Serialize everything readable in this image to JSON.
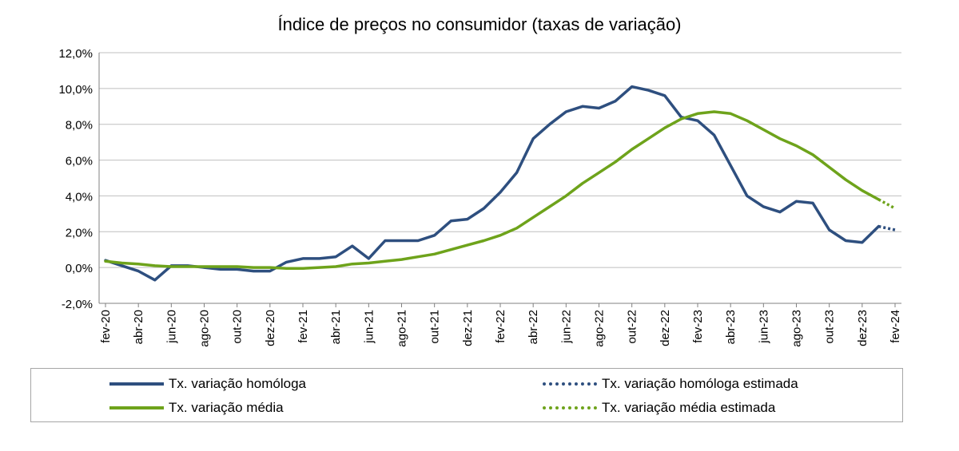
{
  "colors": {
    "homologa": "#2E4F7F",
    "media": "#6EA31B",
    "grid": "#BFBFBF",
    "axis": "#808080"
  },
  "chart_data": {
    "type": "line",
    "title": "Índice de preços no consumidor  (taxas  de variação)",
    "ylim": [
      -2,
      12
    ],
    "y_ticks": [
      -2,
      0,
      2,
      4,
      6,
      8,
      10,
      12
    ],
    "y_tick_labels": [
      "-2,0%",
      "0,0%",
      "2,0%",
      "4,0%",
      "6,0%",
      "8,0%",
      "10,0%",
      "12,0%"
    ],
    "x_tick_labels": [
      "fev-20",
      "abr-20",
      "jun-20",
      "ago-20",
      "out-20",
      "dez-20",
      "fev-21",
      "abr-21",
      "jun-21",
      "ago-21",
      "out-21",
      "dez-21",
      "fev-22",
      "abr-22",
      "jun-22",
      "ago-22",
      "out-22",
      "dez-22",
      "fev-23",
      "abr-23",
      "jun-23",
      "ago-23",
      "out-23",
      "dez-23",
      "fev-24"
    ],
    "x_months": [
      "fev-20",
      "mar-20",
      "abr-20",
      "mai-20",
      "jun-20",
      "jul-20",
      "ago-20",
      "set-20",
      "out-20",
      "nov-20",
      "dez-20",
      "jan-21",
      "fev-21",
      "mar-21",
      "abr-21",
      "mai-21",
      "jun-21",
      "jul-21",
      "ago-21",
      "set-21",
      "out-21",
      "nov-21",
      "dez-21",
      "jan-22",
      "fev-22",
      "mar-22",
      "abr-22",
      "mai-22",
      "jun-22",
      "jul-22",
      "ago-22",
      "set-22",
      "out-22",
      "nov-22",
      "dez-22",
      "jan-23",
      "fev-23",
      "mar-23",
      "abr-23",
      "mai-23",
      "jun-23",
      "jul-23",
      "ago-23",
      "set-23",
      "out-23",
      "nov-23",
      "dez-23",
      "jan-24",
      "fev-24"
    ],
    "grid": true,
    "legend_position": "bottom",
    "series": [
      {
        "name": "Tx. variação homóloga",
        "style": "solid",
        "color": "#2E4F7F",
        "values": [
          0.4,
          0.1,
          -0.2,
          -0.7,
          0.1,
          0.1,
          0.0,
          -0.1,
          -0.1,
          -0.2,
          -0.2,
          0.3,
          0.5,
          0.5,
          0.6,
          1.2,
          0.5,
          1.5,
          1.5,
          1.5,
          1.8,
          2.6,
          2.7,
          3.3,
          4.2,
          5.3,
          7.2,
          8.0,
          8.7,
          9.0,
          8.9,
          9.3,
          10.1,
          9.9,
          9.6,
          8.4,
          8.2,
          7.4,
          5.7,
          4.0,
          3.4,
          3.1,
          3.7,
          3.6,
          2.1,
          1.5,
          1.4,
          2.3,
          null
        ]
      },
      {
        "name": "Tx. variação homóloga estimada",
        "style": "dotted",
        "color": "#2E4F7F",
        "values": [
          null,
          null,
          null,
          null,
          null,
          null,
          null,
          null,
          null,
          null,
          null,
          null,
          null,
          null,
          null,
          null,
          null,
          null,
          null,
          null,
          null,
          null,
          null,
          null,
          null,
          null,
          null,
          null,
          null,
          null,
          null,
          null,
          null,
          null,
          null,
          null,
          null,
          null,
          null,
          null,
          null,
          null,
          null,
          null,
          null,
          null,
          null,
          2.3,
          2.1
        ]
      },
      {
        "name": "Tx. variação média",
        "style": "solid",
        "color": "#6EA31B",
        "values": [
          0.35,
          0.25,
          0.2,
          0.1,
          0.05,
          0.05,
          0.05,
          0.05,
          0.05,
          0.0,
          0.0,
          -0.05,
          -0.05,
          0.0,
          0.05,
          0.2,
          0.25,
          0.35,
          0.45,
          0.6,
          0.75,
          1.0,
          1.25,
          1.5,
          1.8,
          2.2,
          2.8,
          3.4,
          4.0,
          4.7,
          5.3,
          5.9,
          6.6,
          7.2,
          7.8,
          8.3,
          8.6,
          8.7,
          8.6,
          8.2,
          7.7,
          7.2,
          6.8,
          6.3,
          5.6,
          4.9,
          4.3,
          3.8,
          null
        ]
      },
      {
        "name": "Tx. variação média  estimada",
        "style": "dotted",
        "color": "#6EA31B",
        "values": [
          null,
          null,
          null,
          null,
          null,
          null,
          null,
          null,
          null,
          null,
          null,
          null,
          null,
          null,
          null,
          null,
          null,
          null,
          null,
          null,
          null,
          null,
          null,
          null,
          null,
          null,
          null,
          null,
          null,
          null,
          null,
          null,
          null,
          null,
          null,
          null,
          null,
          null,
          null,
          null,
          null,
          null,
          null,
          null,
          null,
          null,
          null,
          3.8,
          3.3
        ]
      }
    ]
  },
  "legend": {
    "items": [
      {
        "label": "Tx. variação homóloga"
      },
      {
        "label": "Tx. variação homóloga estimada"
      },
      {
        "label": "Tx. variação média"
      },
      {
        "label": "Tx. variação média  estimada"
      }
    ]
  }
}
